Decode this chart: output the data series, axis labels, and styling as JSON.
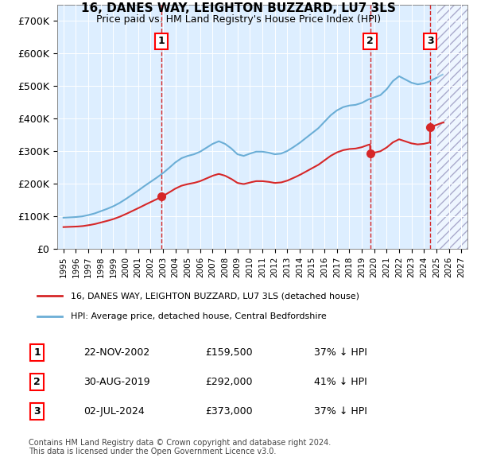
{
  "title": "16, DANES WAY, LEIGHTON BUZZARD, LU7 3LS",
  "subtitle": "Price paid vs. HM Land Registry's House Price Index (HPI)",
  "legend_entries": [
    "16, DANES WAY, LEIGHTON BUZZARD, LU7 3LS (detached house)",
    "HPI: Average price, detached house, Central Bedfordshire"
  ],
  "table_rows": [
    {
      "num": "1",
      "date": "22-NOV-2002",
      "price": "£159,500",
      "change": "37% ↓ HPI"
    },
    {
      "num": "2",
      "date": "30-AUG-2019",
      "price": "£292,000",
      "change": "41% ↓ HPI"
    },
    {
      "num": "3",
      "date": "02-JUL-2024",
      "price": "£373,000",
      "change": "37% ↓ HPI"
    }
  ],
  "footnote": "Contains HM Land Registry data © Crown copyright and database right 2024.\nThis data is licensed under the Open Government Licence v3.0.",
  "hpi_color": "#6baed6",
  "price_color": "#d62728",
  "marker_color": "#d62728",
  "background_color": "#ddeeff",
  "hatch_color": "#aaaacc",
  "ylim": [
    0,
    750000
  ],
  "yticks": [
    0,
    100000,
    200000,
    300000,
    400000,
    500000,
    600000,
    700000
  ],
  "ytick_labels": [
    "£0",
    "£100K",
    "£200K",
    "£300K",
    "£400K",
    "£500K",
    "£600K",
    "£700K"
  ],
  "sale_dates": [
    2002.9,
    2019.67,
    2024.5
  ],
  "sale_prices": [
    159500,
    292000,
    373000
  ],
  "sale_labels": [
    "1",
    "2",
    "3"
  ],
  "xlim_start": 1994.5,
  "xlim_end": 2027.5,
  "future_start": 2025.0
}
